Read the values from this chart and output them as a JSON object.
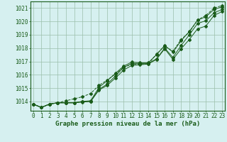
{
  "title": "Graphe pression niveau de la mer (hPa)",
  "hours": [
    0,
    1,
    2,
    3,
    4,
    5,
    6,
    7,
    8,
    9,
    10,
    11,
    12,
    13,
    14,
    15,
    16,
    17,
    18,
    19,
    20,
    21,
    22,
    23
  ],
  "line1": [
    1013.8,
    1013.55,
    1013.8,
    1013.9,
    1013.9,
    1013.9,
    1013.95,
    1014.0,
    1014.85,
    1015.2,
    1015.75,
    1016.35,
    1016.7,
    1016.75,
    1016.8,
    1017.15,
    1017.95,
    1017.15,
    1017.95,
    1018.65,
    1019.45,
    1019.65,
    1020.45,
    1020.75
  ],
  "line2": [
    1013.8,
    1013.55,
    1013.8,
    1013.9,
    1013.9,
    1013.9,
    1014.0,
    1014.0,
    1014.9,
    1015.3,
    1015.9,
    1016.55,
    1016.85,
    1016.85,
    1016.85,
    1017.2,
    1018.0,
    1017.3,
    1018.2,
    1019.0,
    1019.85,
    1020.05,
    1020.65,
    1020.9
  ],
  "line3": [
    1013.8,
    1013.55,
    1013.8,
    1013.9,
    1013.9,
    1013.9,
    1014.0,
    1014.05,
    1015.05,
    1015.55,
    1016.1,
    1016.65,
    1016.95,
    1016.9,
    1016.9,
    1017.5,
    1018.2,
    1017.7,
    1018.55,
    1019.25,
    1020.1,
    1020.35,
    1020.9,
    1021.1
  ],
  "line4": [
    1013.8,
    1013.55,
    1013.8,
    1013.9,
    1014.05,
    1014.2,
    1014.35,
    1014.6,
    1015.2,
    1015.6,
    1016.05,
    1016.55,
    1016.8,
    1016.8,
    1016.8,
    1017.55,
    1018.15,
    1017.75,
    1018.65,
    1019.2,
    1020.1,
    1020.45,
    1021.0,
    1021.2
  ],
  "ylim": [
    1013.3,
    1021.5
  ],
  "yticks": [
    1014,
    1015,
    1016,
    1017,
    1018,
    1019,
    1020,
    1021
  ],
  "bg_color": "#d6f0f0",
  "line_color": "#1a5c1a",
  "grid_color": "#9bbfaa",
  "title_color": "#1a5c1a",
  "title_fontsize": 6.5,
  "tick_fontsize": 5.5,
  "fig_width": 3.2,
  "fig_height": 2.0,
  "dpi": 100
}
